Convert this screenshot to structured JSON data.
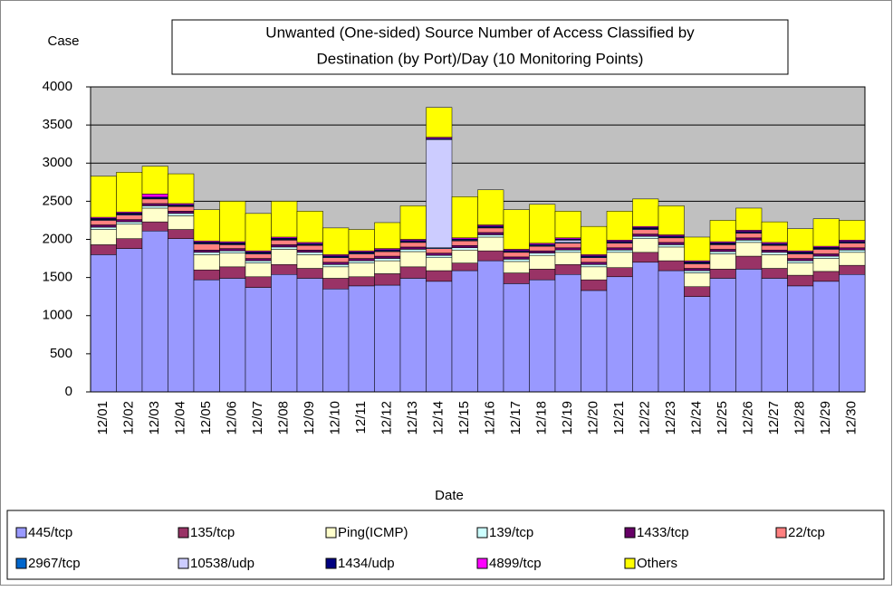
{
  "chart_data": {
    "type": "stacked_bar",
    "title": [
      "Unwanted (One-sided) Source Number of Access Classified by",
      "Destination  (by Port)/Day (10 Monitoring Points)"
    ],
    "y_label": "Case",
    "x_label": "Date",
    "categories": [
      "12/01",
      "12/02",
      "12/03",
      "12/04",
      "12/05",
      "12/06",
      "12/07",
      "12/08",
      "12/09",
      "12/10",
      "12/11",
      "12/12",
      "12/13",
      "12/14",
      "12/15",
      "12/16",
      "12/17",
      "12/18",
      "12/19",
      "12/20",
      "12/21",
      "12/22",
      "12/23",
      "12/24",
      "12/25",
      "12/26",
      "12/27",
      "12/28",
      "12/29",
      "12/30"
    ],
    "ylim": [
      0,
      4000
    ],
    "yticks": [
      0,
      500,
      1000,
      1500,
      2000,
      2500,
      3000,
      3500,
      4000
    ],
    "grid": true,
    "series": [
      {
        "name": "445/tcp",
        "color": "#9999ff",
        "values": [
          1800,
          1880,
          2110,
          2010,
          1470,
          1490,
          1370,
          1540,
          1490,
          1350,
          1390,
          1400,
          1490,
          1450,
          1590,
          1720,
          1420,
          1470,
          1540,
          1330,
          1510,
          1700,
          1590,
          1250,
          1490,
          1610,
          1490,
          1390,
          1450,
          1540
        ]
      },
      {
        "name": "135/tcp",
        "color": "#993366",
        "values": [
          130,
          130,
          120,
          120,
          130,
          150,
          140,
          130,
          130,
          140,
          120,
          150,
          150,
          140,
          100,
          130,
          140,
          140,
          130,
          140,
          120,
          130,
          130,
          130,
          120,
          170,
          130,
          140,
          130,
          120
        ]
      },
      {
        "name": "Ping(ICMP)",
        "color": "#ffffcc",
        "values": [
          200,
          190,
          180,
          180,
          200,
          180,
          180,
          200,
          180,
          150,
          180,
          170,
          200,
          170,
          170,
          180,
          150,
          180,
          160,
          170,
          200,
          180,
          180,
          180,
          200,
          180,
          180,
          160,
          170,
          170
        ]
      },
      {
        "name": "139/tcp",
        "color": "#ccffff",
        "values": [
          30,
          30,
          30,
          30,
          30,
          30,
          30,
          30,
          30,
          30,
          30,
          30,
          30,
          30,
          30,
          30,
          30,
          30,
          30,
          30,
          30,
          30,
          30,
          30,
          30,
          30,
          30,
          30,
          30,
          30
        ]
      },
      {
        "name": "1433/tcp",
        "color": "#660066",
        "values": [
          30,
          30,
          30,
          30,
          30,
          30,
          30,
          30,
          30,
          30,
          30,
          30,
          30,
          30,
          30,
          30,
          30,
          30,
          30,
          30,
          30,
          30,
          30,
          30,
          30,
          30,
          30,
          30,
          30,
          30
        ]
      },
      {
        "name": "22/tcp",
        "color": "#ff8080",
        "values": [
          60,
          60,
          60,
          60,
          80,
          50,
          60,
          60,
          60,
          60,
          60,
          60,
          60,
          60,
          60,
          60,
          60,
          60,
          60,
          60,
          60,
          60,
          60,
          60,
          60,
          60,
          60,
          60,
          60,
          60
        ]
      },
      {
        "name": "2967/tcp",
        "color": "#0066cc",
        "values": [
          10,
          10,
          10,
          10,
          10,
          10,
          10,
          10,
          10,
          10,
          10,
          10,
          10,
          10,
          10,
          10,
          10,
          10,
          10,
          10,
          10,
          10,
          10,
          10,
          10,
          10,
          10,
          10,
          10,
          10
        ]
      },
      {
        "name": "10538/udp",
        "color": "#ccccff",
        "values": [
          0,
          0,
          0,
          0,
          0,
          0,
          0,
          0,
          0,
          0,
          0,
          0,
          0,
          1420,
          0,
          0,
          0,
          0,
          30,
          0,
          0,
          0,
          0,
          0,
          0,
          0,
          0,
          0,
          0,
          0
        ]
      },
      {
        "name": "1434/udp",
        "color": "#000080",
        "values": [
          15,
          15,
          15,
          15,
          15,
          15,
          15,
          15,
          15,
          15,
          15,
          15,
          15,
          15,
          15,
          15,
          15,
          15,
          15,
          15,
          15,
          15,
          15,
          15,
          15,
          15,
          15,
          15,
          15,
          15
        ]
      },
      {
        "name": "4899/tcp",
        "color": "#ff00ff",
        "values": [
          15,
          15,
          40,
          15,
          15,
          15,
          15,
          15,
          15,
          15,
          15,
          15,
          15,
          15,
          15,
          15,
          15,
          15,
          15,
          15,
          15,
          15,
          15,
          15,
          15,
          15,
          15,
          15,
          15,
          15
        ]
      },
      {
        "name": "Others",
        "color": "#ffff00",
        "values": [
          540,
          520,
          365,
          390,
          410,
          530,
          490,
          470,
          410,
          350,
          280,
          340,
          440,
          390,
          540,
          460,
          520,
          510,
          350,
          370,
          380,
          360,
          380,
          310,
          280,
          290,
          270,
          290,
          360,
          260
        ]
      }
    ]
  }
}
